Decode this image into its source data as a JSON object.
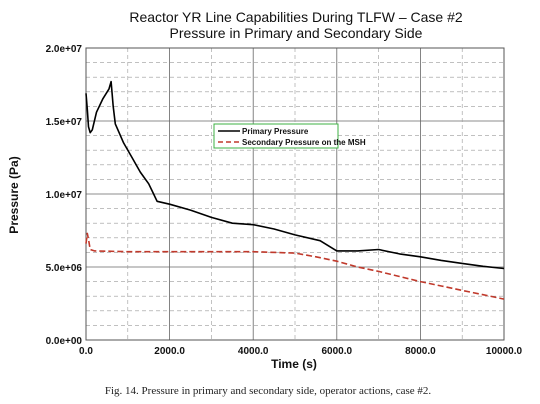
{
  "chart_data": {
    "type": "line",
    "title": "Reactor YR Line Capabilities During TLFW – Case #2",
    "subtitle": "Pressure in Primary and Secondary Side",
    "xlabel": "Time (s)",
    "ylabel": "Pressure (Pa)",
    "xlim": [
      0,
      10000
    ],
    "ylim": [
      0,
      20000000
    ],
    "xticks": [
      0,
      2000,
      4000,
      6000,
      8000,
      10000
    ],
    "xtick_labels": [
      "0.0",
      "2000.0",
      "4000.0",
      "6000.0",
      "8000.0",
      "10000.0"
    ],
    "yticks": [
      0,
      5000000,
      10000000,
      15000000,
      20000000
    ],
    "ytick_labels": [
      "0.0e+00",
      "5.0e+06",
      "1.0e+07",
      "1.5e+07",
      "2.0e+07"
    ],
    "grid": true,
    "legend_position": "upper-center",
    "legend_border_color": "#3cb043",
    "series": [
      {
        "name": "Primary Pressure",
        "color": "#000000",
        "style": "solid",
        "points": [
          [
            0,
            16900000
          ],
          [
            30,
            15800000
          ],
          [
            60,
            14600000
          ],
          [
            100,
            14200000
          ],
          [
            150,
            14400000
          ],
          [
            250,
            15600000
          ],
          [
            400,
            16500000
          ],
          [
            550,
            17200000
          ],
          [
            600,
            17700000
          ],
          [
            650,
            16000000
          ],
          [
            700,
            14800000
          ],
          [
            900,
            13500000
          ],
          [
            1100,
            12500000
          ],
          [
            1300,
            11500000
          ],
          [
            1500,
            10700000
          ],
          [
            1600,
            10100000
          ],
          [
            1700,
            9500000
          ],
          [
            2000,
            9300000
          ],
          [
            2500,
            8900000
          ],
          [
            3000,
            8400000
          ],
          [
            3500,
            8000000
          ],
          [
            4000,
            7900000
          ],
          [
            4500,
            7600000
          ],
          [
            5000,
            7200000
          ],
          [
            5600,
            6800000
          ],
          [
            6000,
            6100000
          ],
          [
            6500,
            6100000
          ],
          [
            7000,
            6200000
          ],
          [
            7500,
            5900000
          ],
          [
            8000,
            5700000
          ],
          [
            8500,
            5450000
          ],
          [
            9000,
            5250000
          ],
          [
            9500,
            5050000
          ],
          [
            10000,
            4900000
          ]
        ]
      },
      {
        "name": "Secondary Pressure on the MSH",
        "color": "#c0392b",
        "style": "dashed",
        "points": [
          [
            0,
            6600000
          ],
          [
            30,
            7300000
          ],
          [
            60,
            6900000
          ],
          [
            100,
            6200000
          ],
          [
            200,
            6100000
          ],
          [
            1000,
            6050000
          ],
          [
            2000,
            6050000
          ],
          [
            3000,
            6050000
          ],
          [
            4000,
            6050000
          ],
          [
            5000,
            5950000
          ],
          [
            5500,
            5700000
          ],
          [
            6000,
            5400000
          ],
          [
            6500,
            5000000
          ],
          [
            7000,
            4700000
          ],
          [
            7500,
            4350000
          ],
          [
            8000,
            4000000
          ],
          [
            8500,
            3700000
          ],
          [
            9000,
            3400000
          ],
          [
            9500,
            3100000
          ],
          [
            10000,
            2800000
          ]
        ]
      }
    ]
  },
  "caption": "Fig. 14.  Pressure in primary and secondary side, operator actions, case #2."
}
